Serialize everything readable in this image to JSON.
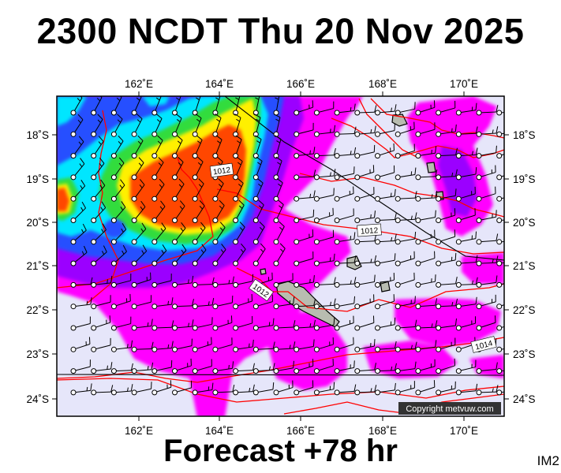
{
  "header": {
    "title": "2300 NCDT Thu 20 Nov 2025"
  },
  "footer": {
    "forecast": "Forecast +78 hr",
    "code": "IM2"
  },
  "map": {
    "lon_labels": [
      "162˚E",
      "164˚E",
      "166˚E",
      "168˚E",
      "170˚E"
    ],
    "lat_labels": [
      "18˚S",
      "19˚S",
      "20˚S",
      "21˚S",
      "22˚S",
      "23˚S",
      "24˚S"
    ],
    "isobar_labels": [
      "1012",
      "1012",
      "1012",
      "1014"
    ],
    "copyright": "Copyright metvuw.com",
    "colors": {
      "background": "#e6e6fa",
      "magenta": "#ff00ff",
      "purple": "#9b00ff",
      "blue": "#2850ff",
      "cyan": "#00e6ff",
      "green": "#32dc3c",
      "yellow": "#fff000",
      "orange": "#ff4600",
      "isobar": "#ff0000",
      "land": "#b8bcb0"
    }
  }
}
